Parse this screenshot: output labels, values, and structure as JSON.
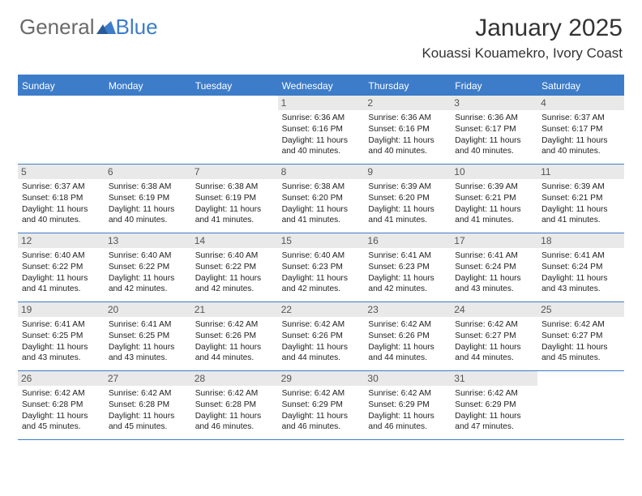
{
  "brand": {
    "word1": "General",
    "word2": "Blue"
  },
  "title": "January 2025",
  "location": "Kouassi Kouamekro, Ivory Coast",
  "colors": {
    "accent": "#3d7cc9",
    "header_gray": "#e9e9e9",
    "text": "#222222",
    "brand_gray": "#6a6a6a",
    "background": "#ffffff"
  },
  "calendar": {
    "font_family": "Arial",
    "daynum_fontsize": 12,
    "detail_fontsize": 10.2,
    "daynames": [
      "Sunday",
      "Monday",
      "Tuesday",
      "Wednesday",
      "Thursday",
      "Friday",
      "Saturday"
    ],
    "weeks": [
      [
        null,
        null,
        null,
        {
          "n": "1",
          "sr": "6:36 AM",
          "ss": "6:16 PM",
          "dl": "11 hours and 40 minutes."
        },
        {
          "n": "2",
          "sr": "6:36 AM",
          "ss": "6:16 PM",
          "dl": "11 hours and 40 minutes."
        },
        {
          "n": "3",
          "sr": "6:36 AM",
          "ss": "6:17 PM",
          "dl": "11 hours and 40 minutes."
        },
        {
          "n": "4",
          "sr": "6:37 AM",
          "ss": "6:17 PM",
          "dl": "11 hours and 40 minutes."
        }
      ],
      [
        {
          "n": "5",
          "sr": "6:37 AM",
          "ss": "6:18 PM",
          "dl": "11 hours and 40 minutes."
        },
        {
          "n": "6",
          "sr": "6:38 AM",
          "ss": "6:19 PM",
          "dl": "11 hours and 40 minutes."
        },
        {
          "n": "7",
          "sr": "6:38 AM",
          "ss": "6:19 PM",
          "dl": "11 hours and 41 minutes."
        },
        {
          "n": "8",
          "sr": "6:38 AM",
          "ss": "6:20 PM",
          "dl": "11 hours and 41 minutes."
        },
        {
          "n": "9",
          "sr": "6:39 AM",
          "ss": "6:20 PM",
          "dl": "11 hours and 41 minutes."
        },
        {
          "n": "10",
          "sr": "6:39 AM",
          "ss": "6:21 PM",
          "dl": "11 hours and 41 minutes."
        },
        {
          "n": "11",
          "sr": "6:39 AM",
          "ss": "6:21 PM",
          "dl": "11 hours and 41 minutes."
        }
      ],
      [
        {
          "n": "12",
          "sr": "6:40 AM",
          "ss": "6:22 PM",
          "dl": "11 hours and 41 minutes."
        },
        {
          "n": "13",
          "sr": "6:40 AM",
          "ss": "6:22 PM",
          "dl": "11 hours and 42 minutes."
        },
        {
          "n": "14",
          "sr": "6:40 AM",
          "ss": "6:22 PM",
          "dl": "11 hours and 42 minutes."
        },
        {
          "n": "15",
          "sr": "6:40 AM",
          "ss": "6:23 PM",
          "dl": "11 hours and 42 minutes."
        },
        {
          "n": "16",
          "sr": "6:41 AM",
          "ss": "6:23 PM",
          "dl": "11 hours and 42 minutes."
        },
        {
          "n": "17",
          "sr": "6:41 AM",
          "ss": "6:24 PM",
          "dl": "11 hours and 43 minutes."
        },
        {
          "n": "18",
          "sr": "6:41 AM",
          "ss": "6:24 PM",
          "dl": "11 hours and 43 minutes."
        }
      ],
      [
        {
          "n": "19",
          "sr": "6:41 AM",
          "ss": "6:25 PM",
          "dl": "11 hours and 43 minutes."
        },
        {
          "n": "20",
          "sr": "6:41 AM",
          "ss": "6:25 PM",
          "dl": "11 hours and 43 minutes."
        },
        {
          "n": "21",
          "sr": "6:42 AM",
          "ss": "6:26 PM",
          "dl": "11 hours and 44 minutes."
        },
        {
          "n": "22",
          "sr": "6:42 AM",
          "ss": "6:26 PM",
          "dl": "11 hours and 44 minutes."
        },
        {
          "n": "23",
          "sr": "6:42 AM",
          "ss": "6:26 PM",
          "dl": "11 hours and 44 minutes."
        },
        {
          "n": "24",
          "sr": "6:42 AM",
          "ss": "6:27 PM",
          "dl": "11 hours and 44 minutes."
        },
        {
          "n": "25",
          "sr": "6:42 AM",
          "ss": "6:27 PM",
          "dl": "11 hours and 45 minutes."
        }
      ],
      [
        {
          "n": "26",
          "sr": "6:42 AM",
          "ss": "6:28 PM",
          "dl": "11 hours and 45 minutes."
        },
        {
          "n": "27",
          "sr": "6:42 AM",
          "ss": "6:28 PM",
          "dl": "11 hours and 45 minutes."
        },
        {
          "n": "28",
          "sr": "6:42 AM",
          "ss": "6:28 PM",
          "dl": "11 hours and 46 minutes."
        },
        {
          "n": "29",
          "sr": "6:42 AM",
          "ss": "6:29 PM",
          "dl": "11 hours and 46 minutes."
        },
        {
          "n": "30",
          "sr": "6:42 AM",
          "ss": "6:29 PM",
          "dl": "11 hours and 46 minutes."
        },
        {
          "n": "31",
          "sr": "6:42 AM",
          "ss": "6:29 PM",
          "dl": "11 hours and 47 minutes."
        },
        null
      ]
    ]
  },
  "labels": {
    "sunrise": "Sunrise: ",
    "sunset": "Sunset: ",
    "daylight": "Daylight: "
  }
}
